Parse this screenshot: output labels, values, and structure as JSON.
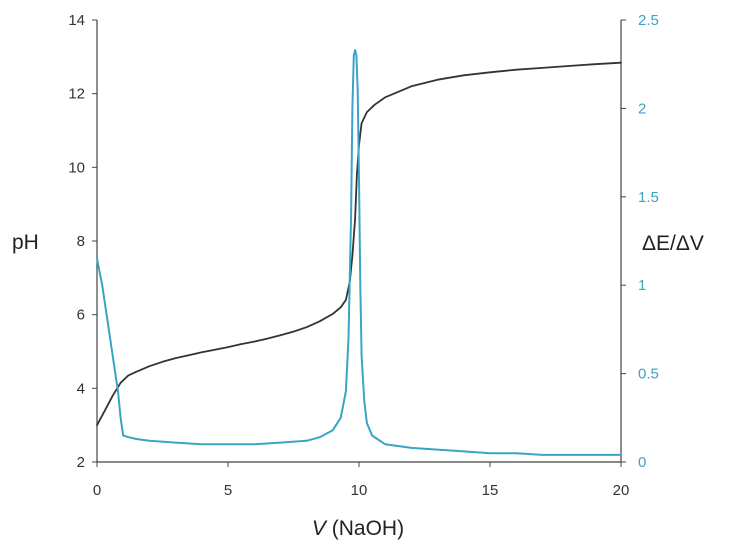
{
  "chart_data": {
    "type": "line",
    "title": "",
    "xlabel": {
      "var": "V",
      "rest": " (NaOH)"
    },
    "ylabel": "pH",
    "y2label": "ΔE/ΔV",
    "xlim": [
      0,
      20
    ],
    "ylim": [
      2,
      14
    ],
    "y2lim": [
      0,
      2.5
    ],
    "xticks": [
      "0",
      "5",
      "10",
      "15",
      "20"
    ],
    "yticks": [
      "2",
      "4",
      "6",
      "8",
      "10",
      "12",
      "14"
    ],
    "y2ticks": [
      "0",
      "0.5",
      "1",
      "1.5",
      "2",
      "2.5"
    ],
    "grid": false,
    "legend": "none",
    "series": [
      {
        "axis": "left",
        "color": "#333333",
        "x": [
          0,
          0.3,
          0.6,
          0.9,
          1.2,
          1.5,
          2,
          2.5,
          3,
          3.5,
          4,
          4.5,
          5,
          5.5,
          6,
          6.5,
          7,
          7.5,
          8,
          8.5,
          9,
          9.3,
          9.5,
          9.65,
          9.75,
          9.85,
          9.92,
          10,
          10.1,
          10.3,
          10.6,
          11,
          11.5,
          12,
          13,
          14,
          15,
          16,
          17,
          18,
          19,
          20
        ],
        "y": [
          3.0,
          3.4,
          3.8,
          4.15,
          4.35,
          4.45,
          4.6,
          4.72,
          4.82,
          4.9,
          4.98,
          5.05,
          5.12,
          5.2,
          5.27,
          5.35,
          5.44,
          5.54,
          5.66,
          5.82,
          6.02,
          6.2,
          6.4,
          6.9,
          7.6,
          8.6,
          9.8,
          10.6,
          11.2,
          11.5,
          11.7,
          11.9,
          12.05,
          12.2,
          12.38,
          12.5,
          12.58,
          12.65,
          12.7,
          12.75,
          12.8,
          12.84
        ]
      },
      {
        "axis": "right",
        "color": "#3ba3c4",
        "x": [
          0,
          0.2,
          0.4,
          0.6,
          0.8,
          0.9,
          1.0,
          1.2,
          1.5,
          2,
          3,
          4,
          5,
          6,
          7,
          8,
          8.5,
          9,
          9.3,
          9.5,
          9.6,
          9.7,
          9.75,
          9.8,
          9.85,
          9.9,
          9.95,
          10,
          10.05,
          10.1,
          10.2,
          10.3,
          10.5,
          11,
          12,
          13,
          14,
          15,
          16,
          17,
          18,
          19,
          20
        ],
        "y": [
          1.15,
          1.0,
          0.8,
          0.6,
          0.4,
          0.25,
          0.15,
          0.14,
          0.13,
          0.12,
          0.11,
          0.1,
          0.1,
          0.1,
          0.11,
          0.12,
          0.14,
          0.18,
          0.25,
          0.4,
          0.7,
          1.4,
          2.0,
          2.3,
          2.33,
          2.3,
          2.1,
          1.6,
          1.0,
          0.6,
          0.35,
          0.22,
          0.15,
          0.1,
          0.08,
          0.07,
          0.06,
          0.05,
          0.05,
          0.04,
          0.04,
          0.04,
          0.04
        ]
      }
    ]
  }
}
